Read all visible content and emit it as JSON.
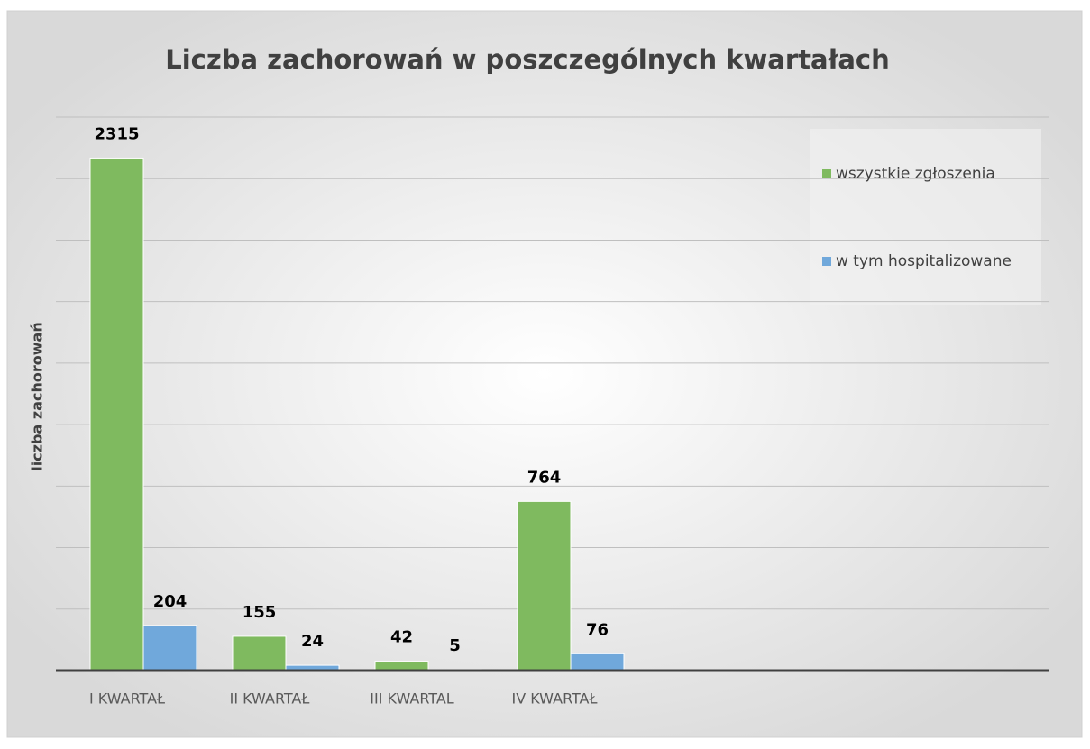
{
  "chart_data": {
    "type": "bar",
    "title": "Liczba zachorowań w poszczególnych kwartałach",
    "y_label": "liczba zachorowań",
    "categories": [
      "I KWARTAŁ",
      "II KWARTAŁ",
      "III KWARTAL",
      "IV KWARTAŁ"
    ],
    "series": [
      {
        "name": "wszystkie zgłoszenia",
        "color": "#7fba5f",
        "values": [
          2315,
          155,
          42,
          764
        ]
      },
      {
        "name": "w tym hospitalizowane",
        "color": "#70a8db",
        "values": [
          204,
          24,
          5,
          76
        ]
      }
    ],
    "ylim": [
      0,
      2500
    ],
    "grid": true,
    "legend": "right"
  }
}
